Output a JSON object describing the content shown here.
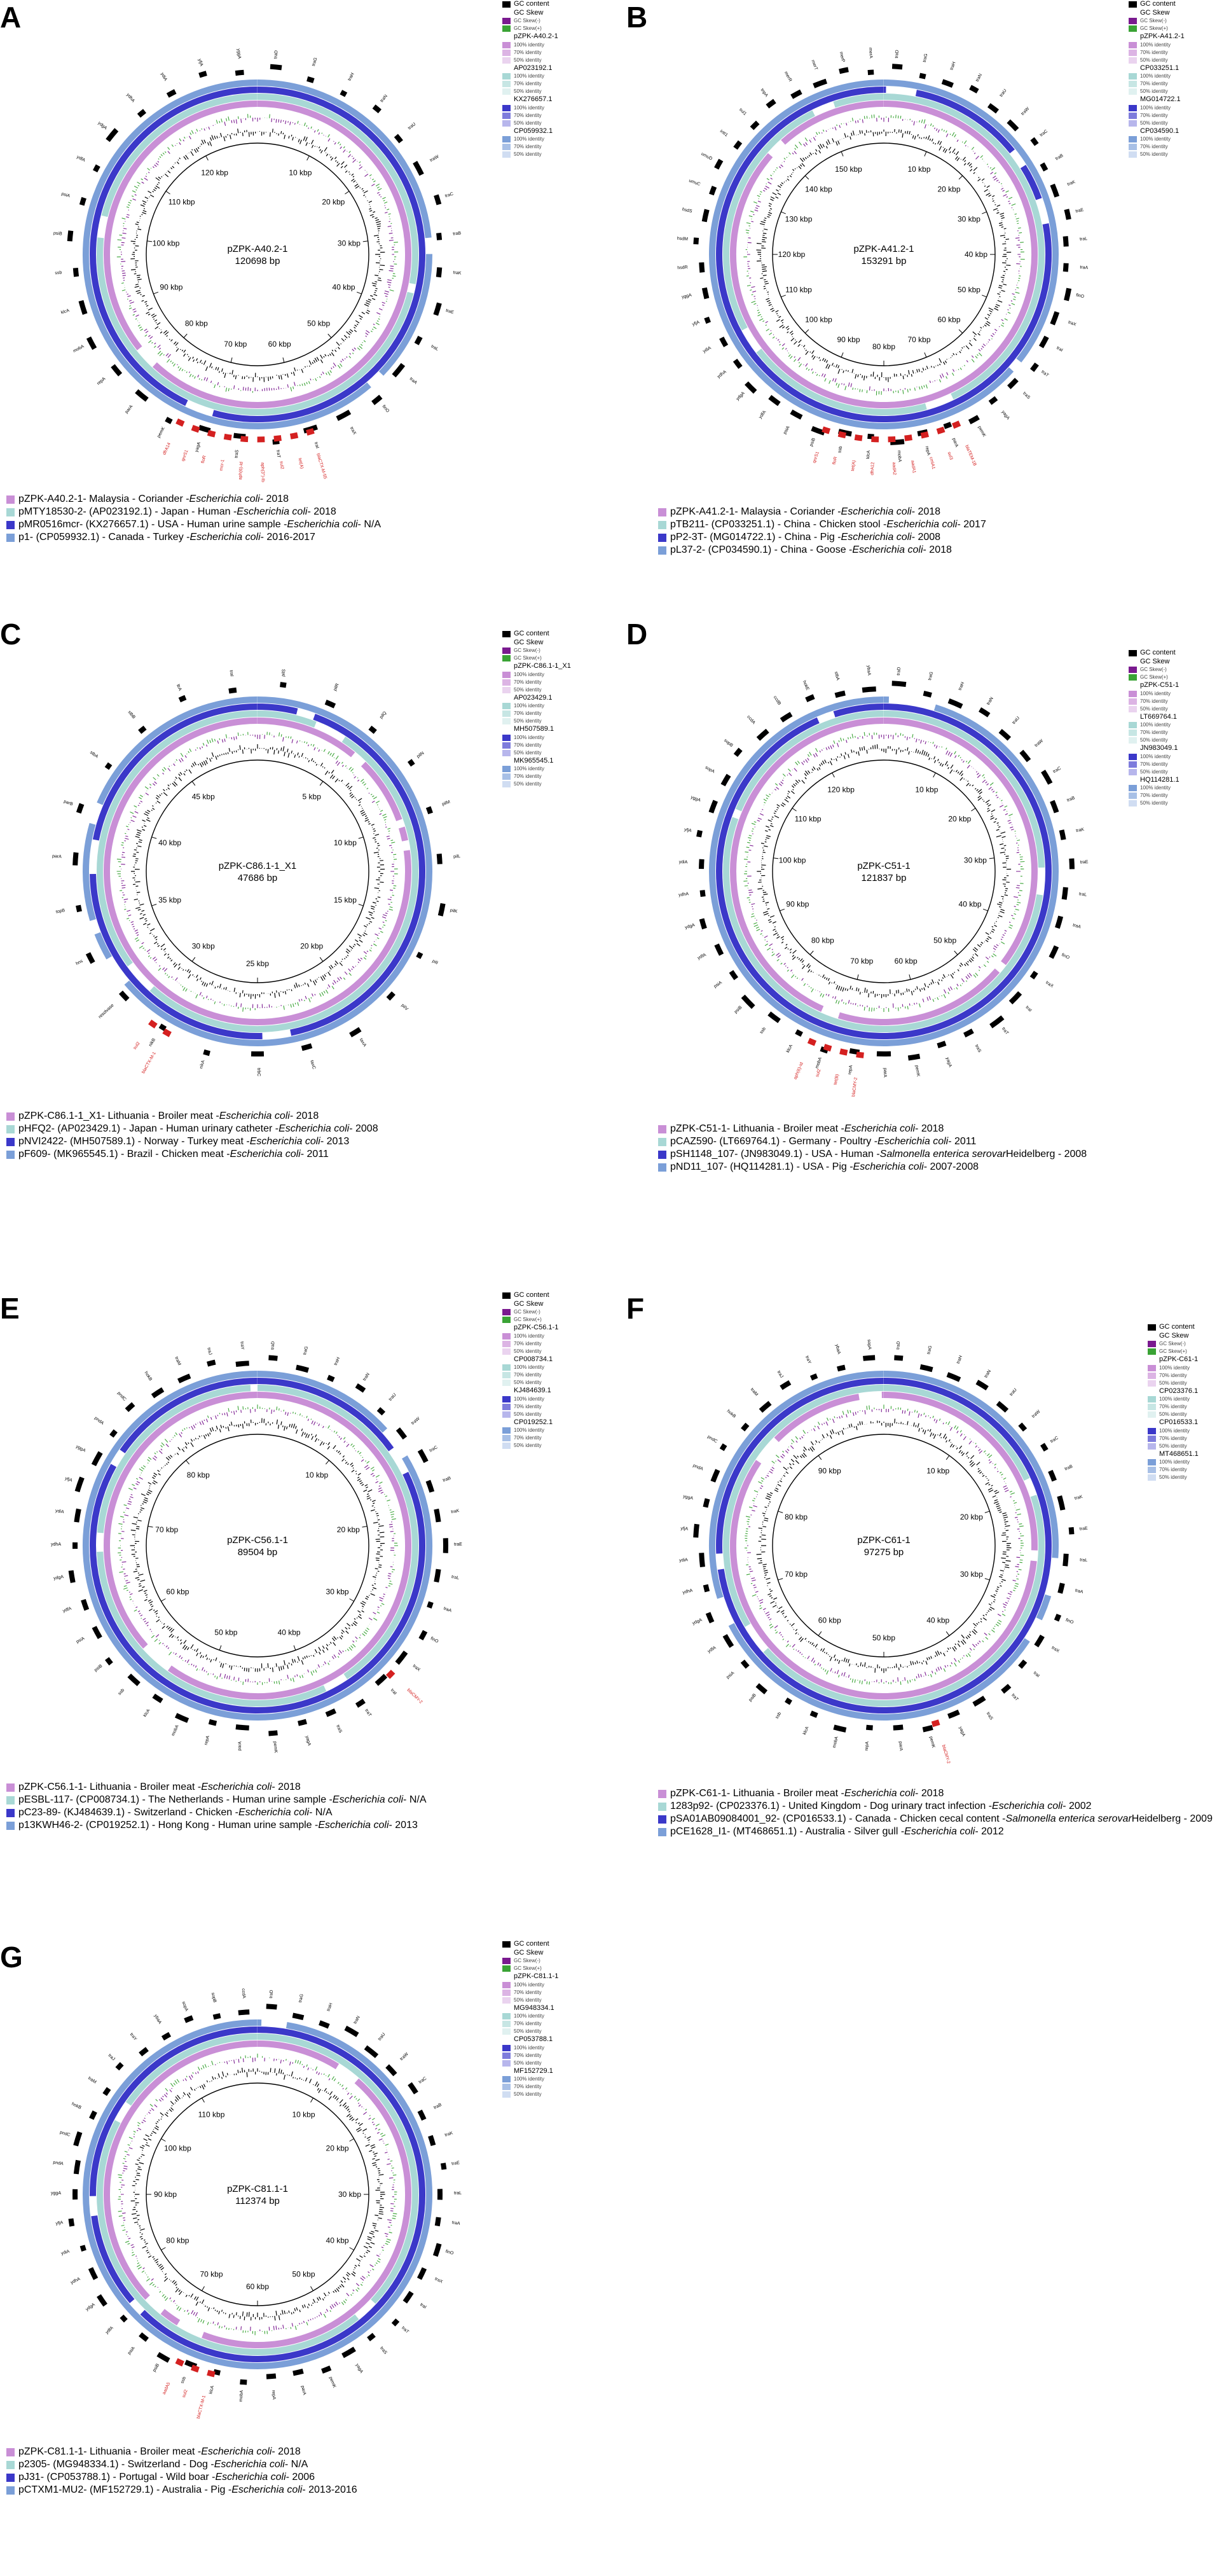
{
  "legend_common": {
    "gc_content": "GC content",
    "gc_skew": "GC Skew",
    "gc_skew_neg": "GC Skew(-)",
    "gc_skew_pos": "GC Skew(+)",
    "id100": "100% identity",
    "id70": "70% identity",
    "id50": "50% identity"
  },
  "colors": {
    "gc": "#000000",
    "skew_neg": "#7a1a8f",
    "skew_pos": "#3aa335",
    "ring1": "#c98fd6",
    "ring2": "#a8d8d5",
    "ring3": "#3b38c9",
    "ring4": "#7b9fd8",
    "gene": "#000000",
    "resistance": "#d42020"
  },
  "panels": [
    {
      "letter": "A",
      "name": "pZPK-A40.2-1",
      "size": "120698 bp",
      "ticks": [
        "10 kbp",
        "20 kbp",
        "30 kbp",
        "40 kbp",
        "50 kbp",
        "60 kbp",
        "70 kbp",
        "80 kbp",
        "90 kbp",
        "100 kbp",
        "110 kbp",
        "120 kbp"
      ],
      "refs": [
        "pZPK-A40.2-1",
        "AP023192.1",
        "KX276657.1",
        "CP059932.1"
      ],
      "genes": [
        "traD",
        "traG",
        "traH",
        "traN",
        "traU",
        "traW",
        "traC",
        "traB",
        "traK",
        "traE",
        "traL",
        "traA",
        "finO",
        "traX",
        "traI",
        "traT",
        "traS",
        "yagA",
        "pemK",
        "parA",
        "repA",
        "mobA",
        "klcA",
        "ssb",
        "psiB",
        "psiA",
        "ydfA",
        "ydgA",
        "ydhA",
        "ydiA",
        "yfjA",
        "yggA"
      ],
      "res": [
        "blaCTX-M-55",
        "tet(A)",
        "sul2",
        "aph(3'')-Ib",
        "aph(6)-Id",
        "mcr-1",
        "floR",
        "qnrS1",
        "dfrA14"
      ],
      "legend": [
        {
          "name": "pZPK-A40.2-1",
          "rest": " - Malaysia - Coriander - ",
          "species": "Escherichia coli",
          "tail": " - 2018"
        },
        {
          "name": "pMTY18530-2",
          "rest": " - (AP023192.1) - Japan - Human - ",
          "species": "Escherichia coli",
          "tail": " - 2018"
        },
        {
          "name": "pMR0516mcr",
          "rest": " - (KX276657.1) - USA - Human urine sample - ",
          "species": "Escherichia coli",
          "tail": " - N/A"
        },
        {
          "name": "p1",
          "rest": " - (CP059932.1) - Canada - Turkey - ",
          "species": "Escherichia coli",
          "tail": " - 2016-2017"
        }
      ]
    },
    {
      "letter": "B",
      "name": "pZPK-A41.2-1",
      "size": "153291 bp",
      "ticks": [
        "10 kbp",
        "20 kbp",
        "30 kbp",
        "40 kbp",
        "50 kbp",
        "60 kbp",
        "70 kbp",
        "80 kbp",
        "90 kbp",
        "100 kbp",
        "110 kbp",
        "120 kbp",
        "130 kbp",
        "140 kbp",
        "150 kbp"
      ],
      "refs": [
        "pZPK-A41.2-1",
        "CP033251.1",
        "MG014722.1",
        "CP034590.1"
      ],
      "genes": [
        "traD",
        "traG",
        "traH",
        "traN",
        "traU",
        "traW",
        "traC",
        "traB",
        "traK",
        "traE",
        "traL",
        "traA",
        "finO",
        "traX",
        "traI",
        "traT",
        "traS",
        "yagA",
        "pemK",
        "parA",
        "repA",
        "mobA",
        "klcA",
        "ssb",
        "psiB",
        "psiA",
        "ydfA",
        "ydgA",
        "ydhA",
        "ydiA",
        "yfjA",
        "yggA",
        "hsdR",
        "hsdM",
        "hsdS",
        "umuC",
        "umuD",
        "intI1",
        "sul1",
        "tnpA",
        "merR",
        "merT",
        "merP",
        "merA"
      ],
      "res": [
        "blaTEM-1B",
        "sul3",
        "cmlA1",
        "aadA1",
        "aadA2",
        "dfrA12",
        "tet(A)",
        "floR",
        "qnrS1"
      ],
      "legend": [
        {
          "name": "pZPK-A41.2-1",
          "rest": " - Malaysia - Coriander - ",
          "species": "Escherichia coli",
          "tail": " - 2018"
        },
        {
          "name": "pTB211",
          "rest": " - (CP033251.1) - China - Chicken stool - ",
          "species": "Escherichia coli",
          "tail": " - 2017"
        },
        {
          "name": "pP2-3T",
          "rest": " - (MG014722.1) - China - Pig - ",
          "species": "Escherichia coli",
          "tail": " - 2008"
        },
        {
          "name": "pL37-2",
          "rest": " - (CP034590.1) - China - Goose - ",
          "species": "Escherichia coli",
          "tail": " - 2018"
        }
      ]
    },
    {
      "letter": "C",
      "name": "pZPK-C86.1-1_X1",
      "size": "47686 bp",
      "ticks": [
        "5 kbp",
        "10 kbp",
        "15 kbp",
        "20 kbp",
        "25 kbp",
        "30 kbp",
        "35 kbp",
        "40 kbp",
        "45 kbp"
      ],
      "refs": [
        "pZPK-C86.1-1_X1",
        "AP023429.1",
        "MH507589.1",
        "MK965545.1"
      ],
      "genes": [
        "pilS",
        "pilR",
        "pilQ",
        "pilN",
        "pilM",
        "pilL",
        "pilK",
        "pilI",
        "pilV",
        "taxA",
        "taxC",
        "trbC",
        "nikA",
        "nikB",
        "resolvase",
        "hns",
        "topB",
        "parA",
        "parB",
        "stbA",
        "stbB",
        "ltrA",
        "traI"
      ],
      "res": [
        "blaCTX-M-1",
        "sul2"
      ],
      "legend": [
        {
          "name": "pZPK-C86.1-1_X1",
          "rest": " - Lithuania - Broiler meat - ",
          "species": "Escherichia coli",
          "tail": " - 2018"
        },
        {
          "name": "pHFQ2",
          "rest": " - (AP023429.1) - Japan - Human urinary catheter - ",
          "species": "Escherichia coli",
          "tail": " - 2008"
        },
        {
          "name": "pNVI2422",
          "rest": " - (MH507589.1) - Norway - Turkey meat - ",
          "species": "Escherichia coli",
          "tail": " - 2013"
        },
        {
          "name": "pF609",
          "rest": " - (MK965545.1) - Brazil - Chicken meat - ",
          "species": "Escherichia coli",
          "tail": " - 2011"
        }
      ]
    },
    {
      "letter": "D",
      "name": "pZPK-C51-1",
      "size": "121837 bp",
      "ticks": [
        "10 kbp",
        "20 kbp",
        "30 kbp",
        "40 kbp",
        "50 kbp",
        "60 kbp",
        "70 kbp",
        "80 kbp",
        "90 kbp",
        "100 kbp",
        "110 kbp",
        "120 kbp"
      ],
      "refs": [
        "pZPK-C51-1",
        "LT669764.1",
        "JN983049.1",
        "HQ114281.1"
      ],
      "genes": [
        "traD",
        "traG",
        "traH",
        "traN",
        "traU",
        "traW",
        "traC",
        "traB",
        "traK",
        "traE",
        "traL",
        "traA",
        "finO",
        "traX",
        "traI",
        "traT",
        "traS",
        "yagA",
        "pemK",
        "parA",
        "repA",
        "mobA",
        "klcA",
        "ssb",
        "psiB",
        "psiA",
        "ydfA",
        "ydgA",
        "ydhA",
        "ydiA",
        "yfjA",
        "yggA",
        "sopA",
        "sopB",
        "ccdA",
        "ccdB",
        "hokE",
        "stbA",
        "ybaA"
      ],
      "res": [
        "blaCMY-2",
        "tet(B)",
        "sul2",
        "aph(6)-Id"
      ],
      "legend": [
        {
          "name": "pZPK-C51-1",
          "rest": " - Lithuania - Broiler meat - ",
          "species": "Escherichia coli",
          "tail": " - 2018"
        },
        {
          "name": "pCAZ590",
          "rest": " - (LT669764.1) - Germany - Poultry - ",
          "species": "Escherichia coli",
          "tail": " - 2011"
        },
        {
          "name": "pSH1148_107",
          "rest": " - (JN983049.1) - USA - Human - ",
          "species": "Salmonella enterica serovar",
          "tail": " Heidelberg - 2008"
        },
        {
          "name": "pND11_107",
          "rest": " - (HQ114281.1) - USA - Pig - ",
          "species": "Escherichia coli",
          "tail": " - 2007-2008"
        }
      ]
    },
    {
      "letter": "E",
      "name": "pZPK-C56.1-1",
      "size": "89504 bp",
      "ticks": [
        "10 kbp",
        "20 kbp",
        "30 kbp",
        "40 kbp",
        "50 kbp",
        "60 kbp",
        "70 kbp",
        "80 kbp"
      ],
      "refs": [
        "pZPK-C56.1-1",
        "CP008734.1",
        "KJ484639.1",
        "CP019252.1"
      ],
      "genes": [
        "traD",
        "traG",
        "traH",
        "traN",
        "traU",
        "traW",
        "traC",
        "traB",
        "traK",
        "traE",
        "traL",
        "traA",
        "finO",
        "traX",
        "traI",
        "traT",
        "traS",
        "yagA",
        "pemK",
        "parA",
        "repA",
        "mobA",
        "klcA",
        "ssb",
        "psiB",
        "psiA",
        "ydfA",
        "ydgA",
        "ydhA",
        "ydiA",
        "yfjA",
        "yggA",
        "pndA",
        "pndC",
        "hokB",
        "traM",
        "traJ",
        "traY"
      ],
      "res": [
        "blaCMY-2"
      ],
      "legend": [
        {
          "name": "pZPK-C56.1-1",
          "rest": " - Lithuania - Broiler meat - ",
          "species": "Escherichia coli",
          "tail": " - 2018"
        },
        {
          "name": "pESBL-117",
          "rest": " - (CP008734.1) - The Netherlands - Human urine sample - ",
          "species": "Escherichia coli",
          "tail": " - N/A"
        },
        {
          "name": "pC23-89",
          "rest": " - (KJ484639.1) - Switzerland - Chicken - ",
          "species": "Escherichia coli",
          "tail": " - N/A"
        },
        {
          "name": "p13KWH46-2",
          "rest": " - (CP019252.1) - Hong Kong - Human urine sample - ",
          "species": "Escherichia coli",
          "tail": " - 2013"
        }
      ]
    },
    {
      "letter": "F",
      "name": "pZPK-C61-1",
      "size": "97275 bp",
      "ticks": [
        "10 kbp",
        "20 kbp",
        "30 kbp",
        "40 kbp",
        "50 kbp",
        "60 kbp",
        "70 kbp",
        "80 kbp",
        "90 kbp"
      ],
      "refs": [
        "pZPK-C61-1",
        "CP023376.1",
        "CP016533.1",
        "MT468651.1"
      ],
      "genes": [
        "traD",
        "traG",
        "traH",
        "traN",
        "traU",
        "traW",
        "traC",
        "traB",
        "traK",
        "traE",
        "traL",
        "traA",
        "finO",
        "traX",
        "traI",
        "traT",
        "traS",
        "yagA",
        "pemK",
        "parA",
        "repA",
        "mobA",
        "klcA",
        "ssb",
        "psiB",
        "psiA",
        "ydfA",
        "ydgA",
        "ydhA",
        "ydiA",
        "yfjA",
        "yggA",
        "pndA",
        "pndC",
        "hokB",
        "traM",
        "traJ",
        "traY",
        "ybaA",
        "sopA"
      ],
      "res": [
        "blaCMY-2"
      ],
      "legend": [
        {
          "name": "pZPK-C61-1",
          "rest": " - Lithuania - Broiler meat - ",
          "species": "Escherichia coli",
          "tail": " - 2018"
        },
        {
          "name": "1283p92",
          "rest": " - (CP023376.1) - United Kingdom - Dog urinary tract infection - ",
          "species": "Escherichia coli",
          "tail": " - 2002"
        },
        {
          "name": "pSA01AB09084001_92",
          "rest": " - (CP016533.1) - Canada - Chicken cecal content - ",
          "species": "Salmonella enterica serovar",
          "tail": " Heidelberg - 2009"
        },
        {
          "name": "pCE1628_I1",
          "rest": " - (MT468651.1) - Australia - Silver gull - ",
          "species": "Escherichia coli",
          "tail": " - 2012"
        }
      ]
    },
    {
      "letter": "G",
      "name": "pZPK-C81.1-1",
      "size": "112374 bp",
      "ticks": [
        "10 kbp",
        "20 kbp",
        "30 kbp",
        "40 kbp",
        "50 kbp",
        "60 kbp",
        "70 kbp",
        "80 kbp",
        "90 kbp",
        "100 kbp",
        "110 kbp"
      ],
      "refs": [
        "pZPK-C81.1-1",
        "MG948334.1",
        "CP053788.1",
        "MF152729.1"
      ],
      "genes": [
        "traD",
        "traG",
        "traH",
        "traN",
        "traU",
        "traW",
        "traC",
        "traB",
        "traK",
        "traE",
        "traL",
        "traA",
        "finO",
        "traX",
        "traI",
        "traT",
        "traS",
        "yagA",
        "pemK",
        "parA",
        "repA",
        "mobA",
        "klcA",
        "ssb",
        "psiB",
        "psiA",
        "ydfA",
        "ydgA",
        "ydhA",
        "ydiA",
        "yfjA",
        "yggA",
        "pndA",
        "pndC",
        "hokB",
        "traM",
        "traJ",
        "traY",
        "ybaA",
        "sopA",
        "sopB",
        "ccdA"
      ],
      "res": [
        "blaCTX-M-1",
        "sul2",
        "aadA5"
      ],
      "legend": [
        {
          "name": "pZPK-C81.1-1",
          "rest": " - Lithuania - Broiler meat - ",
          "species": "Escherichia coli",
          "tail": " - 2018"
        },
        {
          "name": "p2305",
          "rest": " - (MG948334.1) - Switzerland - Dog - ",
          "species": "Escherichia coli",
          "tail": " - N/A"
        },
        {
          "name": "pJ31",
          "rest": " - (CP053788.1) - Portugal - Wild boar - ",
          "species": "Escherichia coli",
          "tail": " - 2006"
        },
        {
          "name": "pCTXM1-MU2",
          "rest": " - (MF152729.1) - Australia - Pig - ",
          "species": "Escherichia coli",
          "tail": " - 2013-2016"
        }
      ]
    }
  ]
}
